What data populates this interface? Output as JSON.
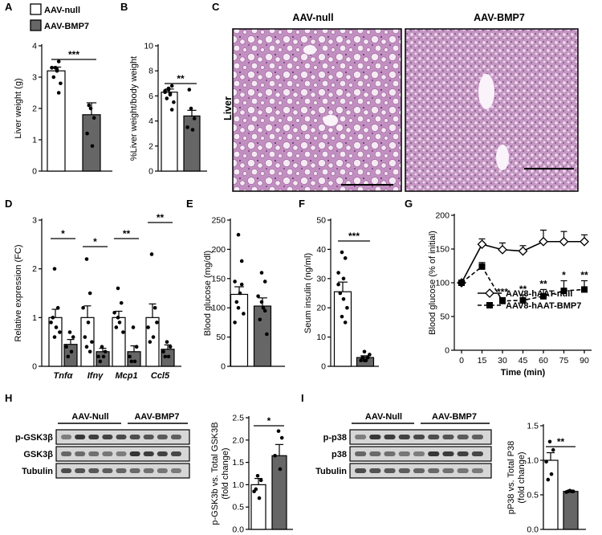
{
  "legend": {
    "null": "AAV-null",
    "bmp7": "AAV-BMP7"
  },
  "colors": {
    "null_fill": "#ffffff",
    "bmp7_fill": "#666666",
    "stroke": "#000000",
    "histo_bg": "#c89ac6",
    "blot_bg": "#d6d6d6"
  },
  "panels": {
    "A": {
      "letter": "A"
    },
    "B": {
      "letter": "B"
    },
    "C": {
      "letter": "C"
    },
    "D": {
      "letter": "D"
    },
    "E": {
      "letter": "E"
    },
    "F": {
      "letter": "F"
    },
    "G": {
      "letter": "G"
    },
    "H": {
      "letter": "H"
    },
    "I": {
      "letter": "I"
    }
  },
  "histology": {
    "row_label": "Liver",
    "titles": [
      "AAV-null",
      "AAV-BMP7"
    ]
  },
  "blots": {
    "H": {
      "groups": [
        "AAV-Null",
        "AAV-BMP7"
      ],
      "rows": [
        "p-GSK3β",
        "GSK3β",
        "Tubulin"
      ]
    },
    "I": {
      "groups": [
        "AAV-Null",
        "AAV-BMP7"
      ],
      "rows": [
        "p-p38",
        "p38",
        "Tubulin"
      ]
    }
  },
  "chart_data": [
    {
      "id": "A",
      "type": "bar",
      "categories": [
        "AAV-null",
        "AAV-BMP7"
      ],
      "values": [
        3.2,
        1.8
      ],
      "errors": [
        0.12,
        0.38
      ],
      "points": [
        [
          3.3,
          3.5,
          3.3,
          3.2,
          3.0,
          2.8,
          3.3,
          2.5,
          3.3,
          3.25
        ],
        [
          2.0,
          1.7,
          1.2,
          0.8,
          2.1
        ]
      ],
      "ylabel": "Liver weight (g)",
      "ylim": [
        0,
        4
      ],
      "yticks": [
        "0",
        "1",
        "2",
        "3",
        "4"
      ],
      "significance": "***"
    },
    {
      "id": "B",
      "type": "bar",
      "categories": [
        "AAV-null",
        "AAV-BMP7"
      ],
      "values": [
        6.3,
        4.4
      ],
      "errors": [
        0.25,
        0.45
      ],
      "points": [
        [
          6.6,
          6.8,
          6.3,
          6.1,
          5.8,
          5.5,
          6.5,
          4.9,
          6.4,
          6.2
        ],
        [
          5.0,
          4.2,
          3.5,
          3.3,
          6.5
        ]
      ],
      "ylabel": "%Liver weight/body weight",
      "ylim": [
        0,
        10
      ],
      "yticks": [
        "0",
        "2",
        "4",
        "6",
        "8",
        "10"
      ],
      "significance": "**"
    },
    {
      "id": "D",
      "type": "bar",
      "categories": [
        "Tnfα",
        "Ifnγ",
        "Mcp1",
        "Ccl5"
      ],
      "series": [
        {
          "name": "AAV-null",
          "values": [
            1.0,
            1.0,
            1.0,
            1.0
          ],
          "errors": [
            0.17,
            0.24,
            0.13,
            0.28
          ],
          "points": [
            [
              2.0,
              1.2,
              0.9,
              0.8,
              1.0,
              0.7,
              0.6
            ],
            [
              2.2,
              1.5,
              1.2,
              0.9,
              0.6,
              0.5,
              0.4,
              0.3
            ],
            [
              1.6,
              1.3,
              1.1,
              0.9,
              0.8,
              0.7,
              1.0
            ],
            [
              2.3,
              1.2,
              0.8,
              0.6,
              0.5,
              0.9
            ]
          ]
        },
        {
          "name": "AAV-BMP7",
          "values": [
            0.45,
            0.3,
            0.3,
            0.35
          ],
          "errors": [
            0.1,
            0.07,
            0.12,
            0.09
          ],
          "points": [
            [
              0.7,
              0.6,
              0.4,
              0.3,
              0.2
            ],
            [
              0.4,
              0.3,
              0.2,
              0.2,
              0.1
            ],
            [
              0.8,
              0.4,
              0.2,
              0.1,
              0.1
            ],
            [
              0.5,
              0.4,
              0.3,
              0.2,
              0.2
            ]
          ]
        }
      ],
      "ylabel": "Relative expression (FC)",
      "ylim": [
        0,
        3
      ],
      "yticks": [
        "0",
        "1",
        "2",
        "3"
      ],
      "significance": [
        "*",
        "*",
        "**",
        "**"
      ]
    },
    {
      "id": "E",
      "type": "bar",
      "categories": [
        "AAV-null",
        "AAV-BMP7"
      ],
      "values": [
        123,
        103
      ],
      "errors": [
        13,
        14
      ],
      "points": [
        [
          225,
          180,
          145,
          125,
          110,
          90,
          100,
          140,
          75
        ],
        [
          160,
          145,
          120,
          100,
          80,
          55,
          110,
          95
        ]
      ],
      "ylabel": "Blood glucose (mg/dl)",
      "ylim": [
        0,
        250
      ],
      "yticks": [
        "0",
        "50",
        "100",
        "150",
        "200",
        "250"
      ]
    },
    {
      "id": "F",
      "type": "bar",
      "categories": [
        "AAV-null",
        "AAV-BMP7"
      ],
      "values": [
        25.5,
        3.0
      ],
      "errors": [
        3.3,
        0.6
      ],
      "points": [
        [
          39,
          37,
          32,
          30,
          25,
          20,
          17,
          15,
          28,
          23
        ],
        [
          5,
          3,
          2,
          2,
          3,
          4,
          2
        ]
      ],
      "ylabel": "Seum insulin (ng/ml)",
      "ylim": [
        0,
        50
      ],
      "yticks": [
        "0",
        "10",
        "20",
        "30",
        "40",
        "50"
      ],
      "significance": "***"
    },
    {
      "id": "G",
      "type": "line",
      "x": [
        0,
        15,
        30,
        45,
        60,
        75,
        90
      ],
      "xticks": [
        "0",
        "15",
        "30",
        "45",
        "60",
        "75",
        "90"
      ],
      "series": [
        {
          "name": "AAV8-hAAT-null",
          "values": [
            100,
            157,
            149,
            147,
            161,
            161,
            161
          ],
          "errors": [
            0,
            8,
            10,
            8,
            17,
            15,
            10
          ],
          "marker": "diamond"
        },
        {
          "name": "AAV8-hAAT-BMP7",
          "values": [
            100,
            124,
            73,
            74,
            80,
            88,
            90
          ],
          "errors": [
            0,
            6,
            5,
            8,
            10,
            15,
            13
          ],
          "marker": "square"
        }
      ],
      "significance": [
        "",
        "",
        "***",
        "**",
        "**",
        "*",
        "**"
      ],
      "xlabel": "Time (min)",
      "ylabel": "Blood glucose (% of initial)",
      "ylim": [
        0,
        200
      ],
      "yticks": [
        "0",
        "50",
        "100",
        "150",
        "200"
      ],
      "xlim": [
        0,
        90
      ]
    },
    {
      "id": "H",
      "type": "bar",
      "categories": [
        "AAV-Null",
        "AAV-BMP7"
      ],
      "values": [
        1.0,
        1.65
      ],
      "errors": [
        0.14,
        0.25
      ],
      "points": [
        [
          1.2,
          1.1,
          0.85,
          0.7,
          0.9
        ],
        [
          2.2,
          2.05,
          1.65,
          1.35
        ]
      ],
      "ylabel": "p-GSK3b vs. Total GSK3B\n(fold change)",
      "ylim": [
        0,
        2.5
      ],
      "yticks": [
        "0.0",
        "0.5",
        "1.0",
        "1.5",
        "2.0",
        "2.5"
      ],
      "significance": "*"
    },
    {
      "id": "I",
      "type": "bar",
      "categories": [
        "AAV-Null",
        "AAV-BMP7"
      ],
      "values": [
        1.0,
        0.55
      ],
      "errors": [
        0.11,
        0.01
      ],
      "points": [
        [
          1.27,
          1.15,
          0.98,
          0.8,
          0.72
        ],
        [
          0.56,
          0.55,
          0.54,
          0.55,
          0.55
        ]
      ],
      "ylabel": "pP38 vs. Total P38\n(fold change)",
      "ylim": [
        0,
        1.5
      ],
      "yticks": [
        "0.0",
        "0.5",
        "1.0",
        "1.5"
      ],
      "significance": "**"
    }
  ]
}
